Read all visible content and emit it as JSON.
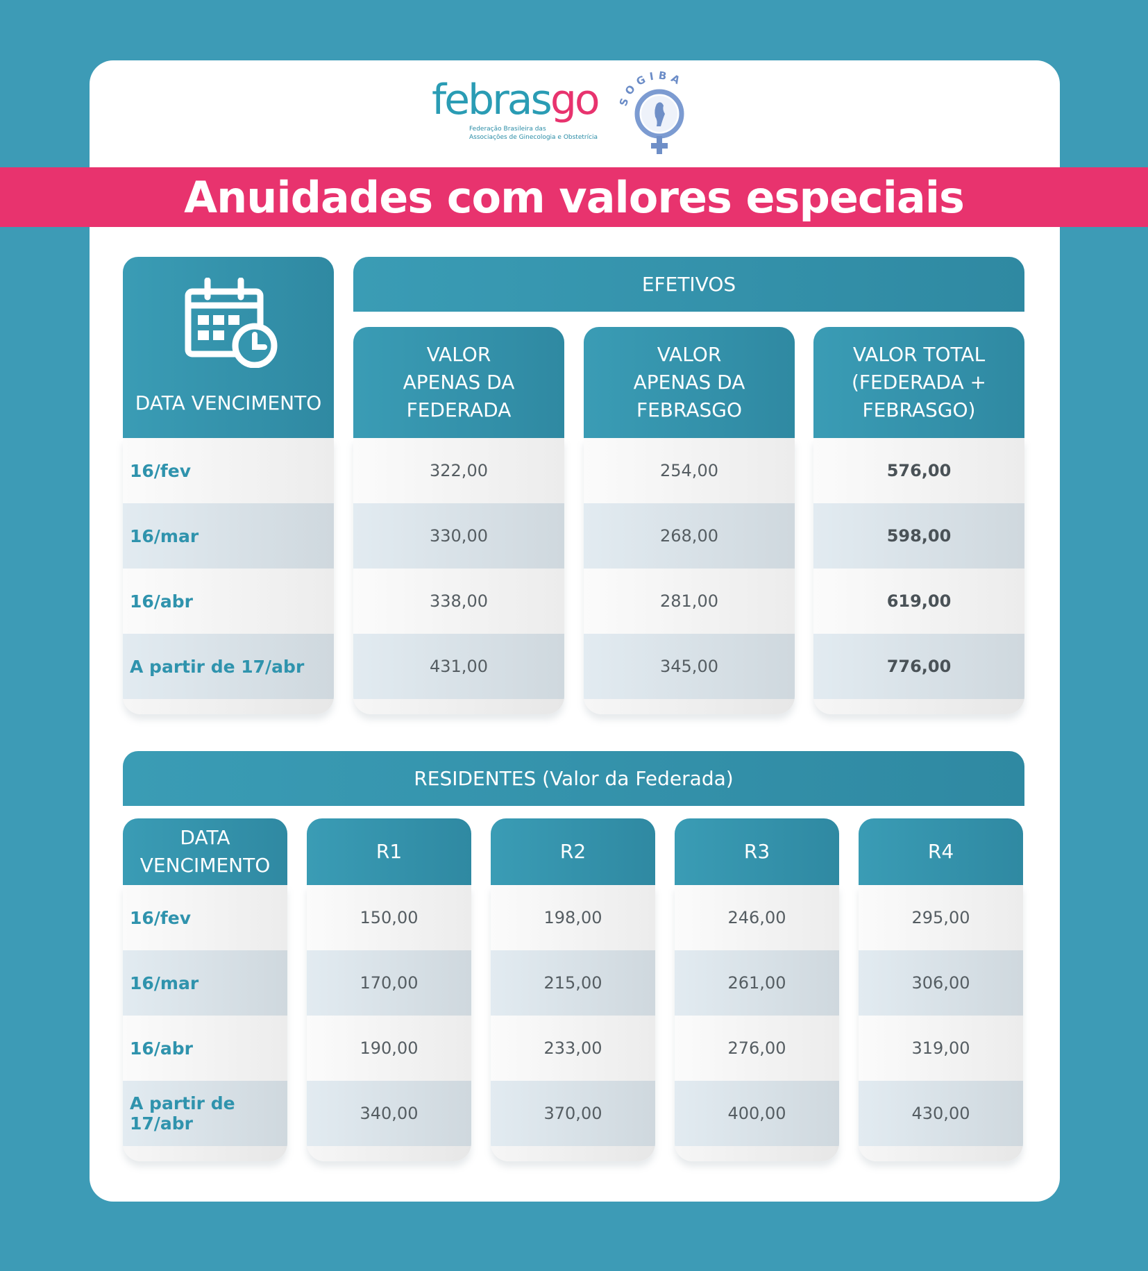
{
  "logos": {
    "febrasgo_word_a": "febras",
    "febrasgo_word_b": "go",
    "febrasgo_sub1": "Federação Brasileira das",
    "febrasgo_sub2": "Associações de Ginecologia e Obstetrícia",
    "sogiba": "SOGIBA"
  },
  "banner": {
    "title": "Anuidades com valores especiais"
  },
  "efetivos": {
    "section_title": "EFETIVOS",
    "date_header": "DATA VENCIMENTO",
    "col1_header": [
      "VALOR",
      "APENAS DA",
      "FEDERADA"
    ],
    "col2_header": [
      "VALOR",
      "APENAS DA",
      "FEBRASGO"
    ],
    "col3_header": [
      "VALOR TOTAL",
      "(FEDERADA +",
      "FEBRASGO)"
    ],
    "rows": [
      {
        "date": "16/fev",
        "federada": "322,00",
        "febrasgo": "254,00",
        "total": "576,00"
      },
      {
        "date": "16/mar",
        "federada": "330,00",
        "febrasgo": "268,00",
        "total": "598,00"
      },
      {
        "date": "16/abr",
        "federada": "338,00",
        "febrasgo": "281,00",
        "total": "619,00"
      },
      {
        "date": "A partir de 17/abr",
        "federada": "431,00",
        "febrasgo": "345,00",
        "total": "776,00"
      }
    ]
  },
  "residentes": {
    "section_title": "RESIDENTES (Valor da Federada)",
    "date_header": [
      "DATA",
      "VENCIMENTO"
    ],
    "r_headers": [
      "R1",
      "R2",
      "R3",
      "R4"
    ],
    "rows": [
      {
        "date": "16/fev",
        "values": [
          "150,00",
          "198,00",
          "246,00",
          "295,00"
        ]
      },
      {
        "date": "16/mar",
        "values": [
          "170,00",
          "215,00",
          "261,00",
          "306,00"
        ]
      },
      {
        "date": "16/abr",
        "values": [
          "190,00",
          "233,00",
          "276,00",
          "319,00"
        ]
      },
      {
        "date": "A partir de 17/abr",
        "values": [
          "340,00",
          "370,00",
          "400,00",
          "430,00"
        ]
      }
    ]
  },
  "colors": {
    "background": "#3d9bb6",
    "banner": "#e8336e",
    "header": "#3a9cb5",
    "date_text": "#2f93ad"
  },
  "icons": [
    "calendar-clock-icon"
  ]
}
